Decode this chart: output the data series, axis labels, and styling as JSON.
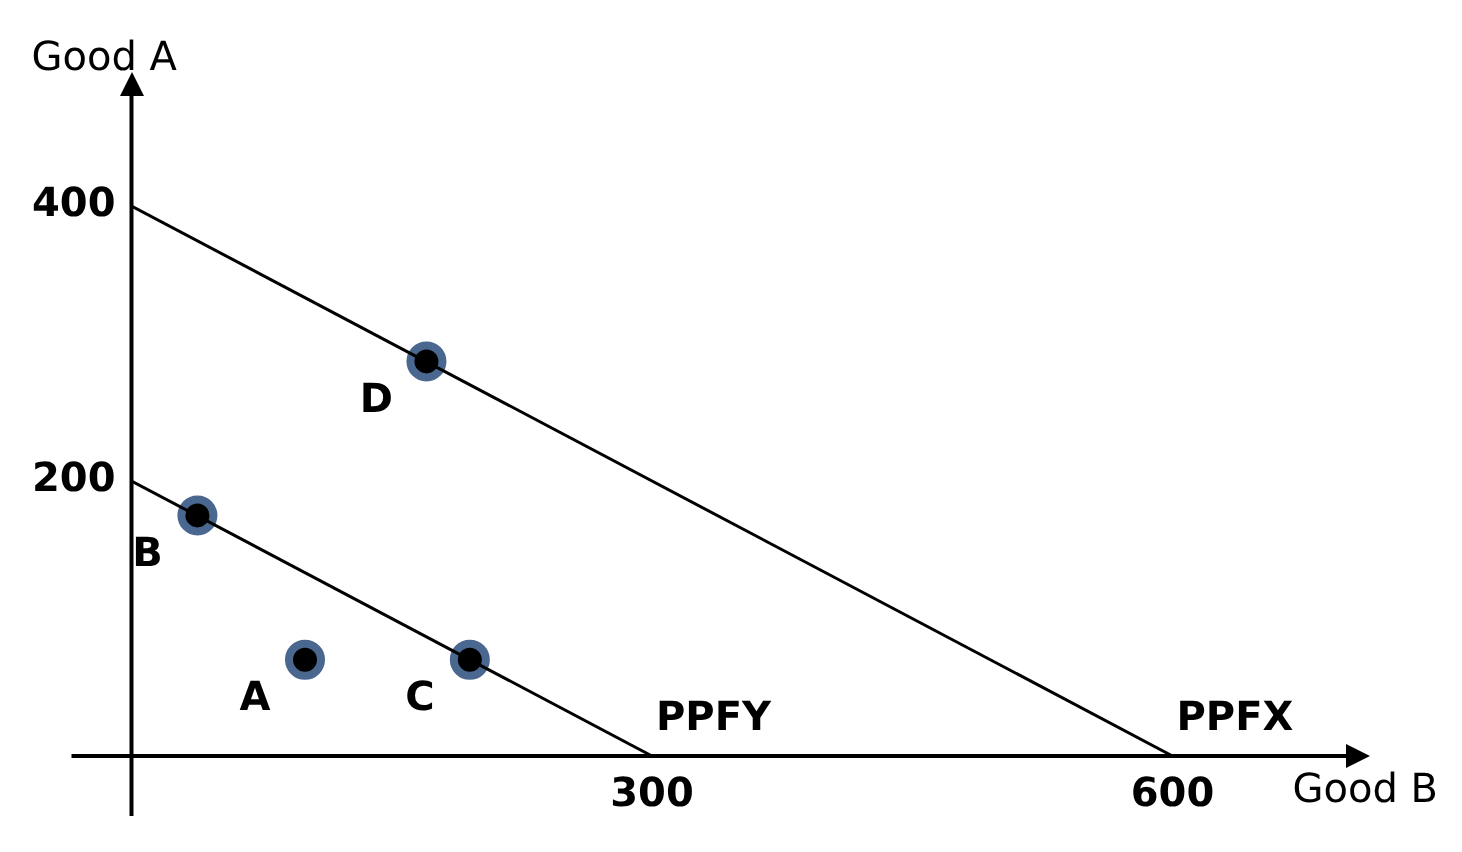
{
  "chart_data": {
    "type": "line",
    "xlabel": "Good B",
    "ylabel": "Good A",
    "xlim": [
      0,
      700
    ],
    "ylim": [
      0,
      480
    ],
    "xticks": [
      300,
      600
    ],
    "yticks": [
      200,
      400
    ],
    "grid": false,
    "legend": false,
    "marker": "none",
    "line_style": "solid",
    "series": [
      {
        "name": "PPFY",
        "color": "#000000",
        "x": [
          0,
          300
        ],
        "values": [
          200,
          0
        ]
      },
      {
        "name": "PPFX",
        "color": "#000000",
        "x": [
          0,
          600
        ],
        "values": [
          400,
          0
        ]
      },
      {
        "type": "scatter",
        "marker": "circle",
        "color": "#4a6790",
        "x": [
          170,
          38,
          100,
          195
        ],
        "values": [
          287,
          175,
          70,
          70
        ]
      }
    ],
    "annotations": [
      {
        "text": "D",
        "x": 170,
        "y": 287
      },
      {
        "text": "B",
        "x": 38,
        "y": 175
      },
      {
        "text": "A",
        "x": 100,
        "y": 70
      },
      {
        "text": "C",
        "x": 195,
        "y": 70
      }
    ]
  }
}
